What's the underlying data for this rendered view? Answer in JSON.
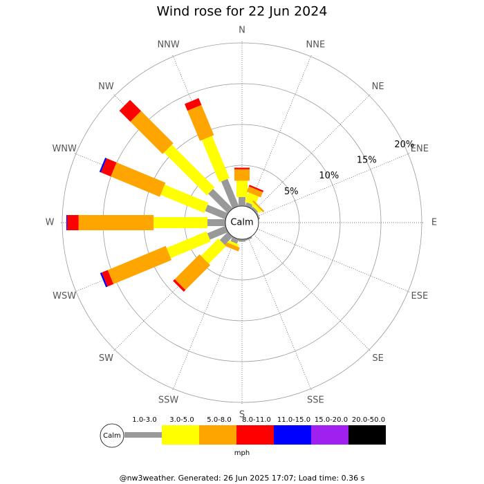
{
  "chart_data": {
    "type": "windrose",
    "title": "Wind rose for 22 Jun 2024",
    "categories": [
      "N",
      "NNE",
      "NE",
      "ENE",
      "E",
      "ESE",
      "SE",
      "SSE",
      "S",
      "SSW",
      "SW",
      "WSW",
      "W",
      "WNW",
      "NW",
      "NNW"
    ],
    "series": [
      {
        "name": "1.0-3.0",
        "color": "#999999",
        "values": [
          1.1,
          0.5,
          0.3,
          0.2,
          0,
          0,
          0,
          0.2,
          0.3,
          0.6,
          1.4,
          2.4,
          2.2,
          2.7,
          3.4,
          3.6
        ]
      },
      {
        "name": "3.0-5.0",
        "color": "#ffff00",
        "values": [
          2.0,
          1.2,
          0.4,
          0,
          0,
          0,
          0,
          0,
          0,
          0.3,
          3.0,
          5.3,
          6.6,
          5.8,
          7.4,
          5.6
        ]
      },
      {
        "name": "5.0-8.0",
        "color": "#ffa500",
        "values": [
          1.4,
          0.7,
          0.2,
          0,
          0,
          0,
          0,
          0,
          0,
          0.5,
          4.3,
          7.7,
          9.2,
          6.5,
          5.6,
          4.0
        ]
      },
      {
        "name": "8.0-11.0",
        "color": "#ff0000",
        "values": [
          0.2,
          0.2,
          0,
          0,
          0,
          0,
          0,
          0,
          0,
          0,
          0.3,
          0.8,
          1.4,
          1.3,
          1.9,
          0.9
        ]
      },
      {
        "name": "11.0-15.0",
        "color": "#0000ff",
        "values": [
          0,
          0,
          0,
          0,
          0,
          0,
          0,
          0,
          0,
          0,
          0,
          0.2,
          0.1,
          0.2,
          0,
          0
        ]
      },
      {
        "name": "15.0-20.0",
        "color": "#a020f0",
        "values": [
          0,
          0,
          0,
          0,
          0,
          0,
          0,
          0,
          0,
          0,
          0,
          0,
          0,
          0,
          0,
          0
        ]
      },
      {
        "name": "20.0-50.0",
        "color": "#000000",
        "values": [
          0,
          0,
          0,
          0,
          0,
          0,
          0,
          0,
          0,
          0,
          0,
          0,
          0,
          0,
          0,
          0
        ]
      }
    ],
    "ylim": [
      0,
      20
    ],
    "yticks": [
      {
        "value": 5,
        "label": "5%"
      },
      {
        "value": 10,
        "label": "10%"
      },
      {
        "value": 15,
        "label": "15%"
      },
      {
        "value": 20,
        "label": "20%"
      }
    ],
    "calm_label": "Calm",
    "legend_unit": "mph",
    "footer": "@nw3weather. Generated: 26 Jun 2025 17:07; Load time: 0.36 s"
  }
}
